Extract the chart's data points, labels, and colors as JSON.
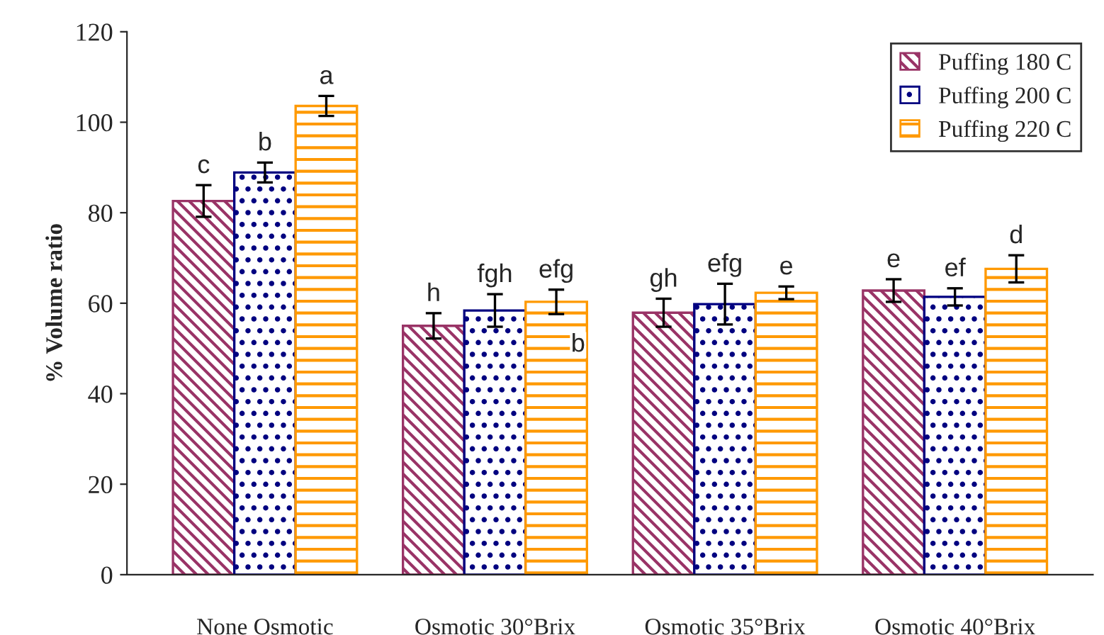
{
  "chart_data": {
    "type": "bar",
    "ylabel": "% Volume ratio",
    "categories": [
      "None Osmotic",
      "Osmotic 30°Brix",
      "Osmotic 35°Brix",
      "Osmotic 40°Brix"
    ],
    "series": [
      {
        "name": "Puffing 180 C",
        "color": "#993366",
        "values": [
          82.6,
          55.0,
          57.9,
          62.8
        ],
        "errors": [
          3.5,
          2.8,
          3.1,
          2.5
        ],
        "value_labels": [
          "c",
          "h",
          "gh",
          "e"
        ]
      },
      {
        "name": "Puffing 200 C",
        "color": "#000080",
        "values": [
          88.9,
          58.4,
          59.8,
          61.4
        ],
        "errors": [
          2.2,
          3.6,
          4.5,
          1.9
        ],
        "value_labels": [
          "b",
          "fgh",
          "efg",
          "ef"
        ]
      },
      {
        "name": "Puffing 220 C",
        "color": "#ff9900",
        "values": [
          103.6,
          60.3,
          62.3,
          67.6
        ],
        "errors": [
          2.2,
          2.7,
          1.4,
          3.0
        ],
        "value_labels": [
          "a",
          "efg",
          "e",
          "d"
        ]
      }
    ],
    "annotations": [
      "b"
    ],
    "ylim": [
      0,
      120
    ],
    "yticks": [
      0,
      20,
      40,
      60,
      80,
      100,
      120
    ],
    "grid": false,
    "legend": "top right"
  }
}
